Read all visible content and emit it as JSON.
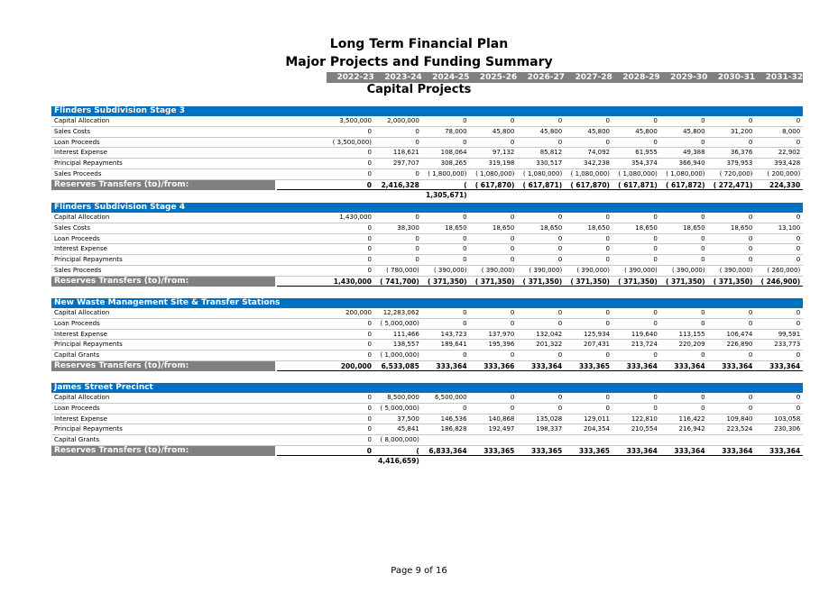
{
  "titles": {
    "line1": "Long Term Financial Plan",
    "line2": "Major Projects and Funding Summary",
    "line3": "Capital Projects"
  },
  "years": [
    "2022-23",
    "2023-24",
    "2024-25",
    "2025-26",
    "2026-27",
    "2027-28",
    "2028-29",
    "2029-30",
    "2030-31",
    "2031-32"
  ],
  "sections": [
    {
      "name": "Flinders Subdivision Stage 3",
      "rows": [
        {
          "label": "Capital Allocation",
          "values": [
            "3,500,000",
            "2,000,000",
            "0",
            "0",
            "0",
            "0",
            "0",
            "0",
            "0",
            "0"
          ]
        },
        {
          "label": "Sales Costs",
          "values": [
            "0",
            "0",
            "78,000",
            "45,800",
            "45,800",
            "45,800",
            "45,800",
            "45,800",
            "31,200",
            "8,000"
          ]
        },
        {
          "label": "Loan Proceeds",
          "values": [
            "( 3,500,000)",
            "0",
            "0",
            "0",
            "0",
            "0",
            "0",
            "0",
            "0",
            "0"
          ]
        },
        {
          "label": "Interest Expense",
          "values": [
            "0",
            "118,621",
            "108,064",
            "97,132",
            "85,812",
            "74,092",
            "61,955",
            "49,388",
            "36,376",
            "22,902"
          ]
        },
        {
          "label": "Principal Repayments",
          "values": [
            "0",
            "297,707",
            "308,265",
            "319,198",
            "330,517",
            "342,238",
            "354,374",
            "366,940",
            "379,953",
            "393,428"
          ]
        },
        {
          "label": "Sales Proceeds",
          "values": [
            "0",
            "0",
            "( 1,800,000)",
            "( 1,080,000)",
            "( 1,080,000)",
            "( 1,080,000)",
            "( 1,080,000)",
            "( 1,080,000)",
            "( 720,000)",
            "( 200,000)"
          ]
        }
      ],
      "total": {
        "label": "Reserves Transfers (to)/from:",
        "values": [
          "0",
          "2,416,328",
          "( 1,305,671)",
          "( 617,870)",
          "( 617,871)",
          "( 617,870)",
          "( 617,871)",
          "( 617,872)",
          "( 272,471)",
          "224,330"
        ]
      }
    },
    {
      "name": "Flinders Subdivision Stage 4",
      "rows": [
        {
          "label": "Capital Allocation",
          "values": [
            "1,430,000",
            "0",
            "0",
            "0",
            "0",
            "0",
            "0",
            "0",
            "0",
            "0"
          ]
        },
        {
          "label": "Sales Costs",
          "values": [
            "0",
            "38,300",
            "18,650",
            "18,650",
            "18,650",
            "18,650",
            "18,650",
            "18,650",
            "18,650",
            "13,100"
          ]
        },
        {
          "label": "Loan Proceeds",
          "values": [
            "0",
            "0",
            "0",
            "0",
            "0",
            "0",
            "0",
            "0",
            "0",
            "0"
          ]
        },
        {
          "label": "Interest Expense",
          "values": [
            "0",
            "0",
            "0",
            "0",
            "0",
            "0",
            "0",
            "0",
            "0",
            "0"
          ]
        },
        {
          "label": "Principal Repayments",
          "values": [
            "0",
            "0",
            "0",
            "0",
            "0",
            "0",
            "0",
            "0",
            "0",
            "0"
          ]
        },
        {
          "label": "Sales Proceeds",
          "values": [
            "0",
            "( 780,000)",
            "( 390,000)",
            "( 390,000)",
            "( 390,000)",
            "( 390,000)",
            "( 390,000)",
            "( 390,000)",
            "( 390,000)",
            "( 260,000)"
          ]
        }
      ],
      "total": {
        "label": "Reserves Transfers (to)/from:",
        "values": [
          "1,430,000",
          "( 741,700)",
          "( 371,350)",
          "( 371,350)",
          "( 371,350)",
          "( 371,350)",
          "( 371,350)",
          "( 371,350)",
          "( 371,350)",
          "( 246,900)"
        ]
      }
    },
    {
      "name": "New Waste Management Site & Transfer Stations",
      "rows": [
        {
          "label": "Capital Allocation",
          "values": [
            "200,000",
            "12,283,062",
            "0",
            "0",
            "0",
            "0",
            "0",
            "0",
            "0",
            "0"
          ]
        },
        {
          "label": "Loan Proceeds",
          "values": [
            "0",
            "( 5,000,000)",
            "0",
            "0",
            "0",
            "0",
            "0",
            "0",
            "0",
            "0"
          ]
        },
        {
          "label": "Interest Expense",
          "values": [
            "0",
            "111,466",
            "143,723",
            "137,970",
            "132,042",
            "125,934",
            "119,640",
            "113,155",
            "106,474",
            "99,591"
          ]
        },
        {
          "label": "Principal Repayments",
          "values": [
            "0",
            "138,557",
            "189,641",
            "195,396",
            "201,322",
            "207,431",
            "213,724",
            "220,209",
            "226,890",
            "233,773"
          ]
        },
        {
          "label": "Capital Grants",
          "values": [
            "0",
            "( 1,000,000)",
            "0",
            "0",
            "0",
            "0",
            "0",
            "0",
            "0",
            "0"
          ]
        }
      ],
      "total": {
        "label": "Reserves Transfers (to)/from:",
        "values": [
          "200,000",
          "6,533,085",
          "333,364",
          "333,366",
          "333,364",
          "333,365",
          "333,364",
          "333,364",
          "333,364",
          "333,364"
        ]
      }
    },
    {
      "name": "James Street Precinct",
      "rows": [
        {
          "label": "Capital Allocation",
          "values": [
            "0",
            "8,500,000",
            "6,500,000",
            "0",
            "0",
            "0",
            "0",
            "0",
            "0",
            "0"
          ]
        },
        {
          "label": "Loan Proceeds",
          "values": [
            "0",
            "( 5,000,000)",
            "0",
            "0",
            "0",
            "0",
            "0",
            "0",
            "0",
            "0"
          ]
        },
        {
          "label": "Interest Expense",
          "values": [
            "0",
            "37,500",
            "146,536",
            "140,868",
            "135,028",
            "129,011",
            "122,810",
            "116,422",
            "109,840",
            "103,058"
          ]
        },
        {
          "label": "Principal Repayments",
          "values": [
            "0",
            "45,841",
            "186,828",
            "192,497",
            "198,337",
            "204,354",
            "210,554",
            "216,942",
            "223,524",
            "230,306"
          ]
        },
        {
          "label": "Capital Grants",
          "values": [
            "0",
            "( 8,000,000)",
            "",
            "",
            "",
            "",
            "",
            "",
            "",
            ""
          ]
        }
      ],
      "total": {
        "label": "Reserves Transfers (to)/from:",
        "values": [
          "0",
          "( 4,416,659)",
          "6,833,364",
          "333,365",
          "333,365",
          "333,365",
          "333,364",
          "333,364",
          "333,364",
          "333,364"
        ]
      }
    }
  ],
  "footer": "Page 9 of 16"
}
